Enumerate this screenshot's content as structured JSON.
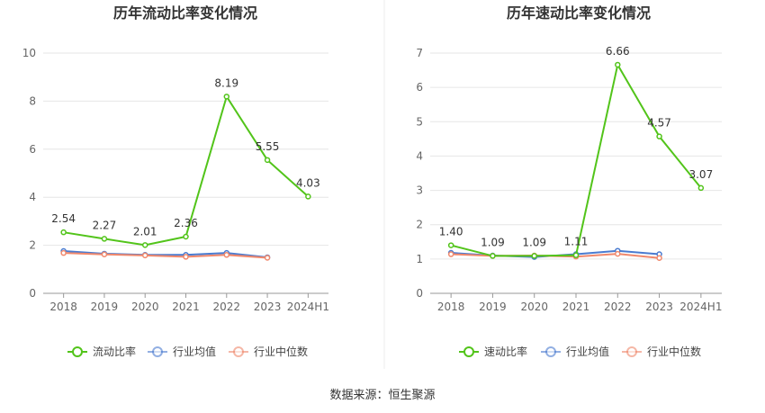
{
  "source_text": "数据来源：恒生聚源",
  "chart_data": [
    {
      "type": "line",
      "title": "历年流动比率变化情况",
      "categories": [
        "2018",
        "2019",
        "2020",
        "2021",
        "2022",
        "2023",
        "2024H1"
      ],
      "ylim": [
        0,
        10
      ],
      "yticks": [
        0,
        2,
        4,
        6,
        8,
        10
      ],
      "grid": true,
      "legend_position": "bottom",
      "series": [
        {
          "name": "流动比率",
          "color": "#52c41a",
          "values": [
            2.54,
            2.27,
            2.01,
            2.36,
            8.19,
            5.55,
            4.03
          ],
          "labels": [
            "2.54",
            "2.27",
            "2.01",
            "2.36",
            "8.19",
            "5.55",
            "4.03"
          ]
        },
        {
          "name": "行业均值",
          "color": "#4a7bd0",
          "values": [
            1.76,
            1.65,
            1.6,
            1.6,
            1.68,
            1.5,
            null
          ]
        },
        {
          "name": "行业中位数",
          "color": "#f0886c",
          "values": [
            1.68,
            1.62,
            1.58,
            1.52,
            1.6,
            1.48,
            null
          ]
        }
      ]
    },
    {
      "type": "line",
      "title": "历年速动比率变化情况",
      "categories": [
        "2018",
        "2019",
        "2020",
        "2021",
        "2022",
        "2023",
        "2024H1"
      ],
      "ylim": [
        0,
        7
      ],
      "yticks": [
        0,
        1,
        2,
        3,
        4,
        5,
        6,
        7
      ],
      "grid": true,
      "legend_position": "bottom",
      "series": [
        {
          "name": "速动比率",
          "color": "#52c41a",
          "values": [
            1.4,
            1.09,
            1.09,
            1.11,
            6.66,
            4.57,
            3.07
          ],
          "labels": [
            "1.40",
            "1.09",
            "1.09",
            "1.11",
            "6.66",
            "4.57",
            "3.07"
          ]
        },
        {
          "name": "行业均值",
          "color": "#4a7bd0",
          "values": [
            1.18,
            1.1,
            1.06,
            1.14,
            1.24,
            1.14,
            null
          ]
        },
        {
          "name": "行业中位数",
          "color": "#f0886c",
          "values": [
            1.14,
            1.09,
            1.1,
            1.07,
            1.15,
            1.03,
            null
          ]
        }
      ]
    }
  ]
}
